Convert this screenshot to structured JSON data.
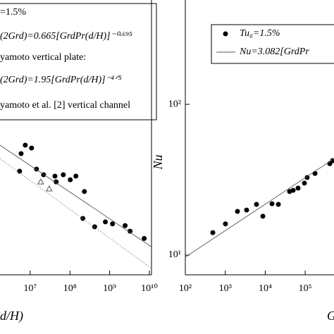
{
  "chart_data": [
    {
      "type": "scatter",
      "xlabel": "d/H)",
      "log_x": true,
      "log_y": true,
      "xlim": [
        1000000,
        10000000000
      ],
      "ylim": [
        7.4,
        492
      ],
      "xticks": [
        {
          "value": 10000000,
          "label": "10⁷"
        },
        {
          "value": 100000000,
          "label": "10⁸"
        },
        {
          "value": 1000000000,
          "label": "10⁹"
        },
        {
          "value": 10000000000,
          "label": "10¹⁰"
        }
      ],
      "yticks": [],
      "legend_note": "yamoto vertical plate:",
      "series": [
        {
          "name": "=1.5%",
          "style": "dot",
          "color": "#000000",
          "x": [
            7500000,
            10800000,
            5900000,
            5400000,
            14400000,
            21700000,
            42000000,
            68000000,
            102000000,
            141000000,
            231000000,
            45000000,
            212000000,
            420000000,
            780000000,
            1180000000,
            2450000000,
            3260000000,
            7400000000
          ],
          "values": [
            53.6,
            51.3,
            47.1,
            36.0,
            37.2,
            34.1,
            33.4,
            34.1,
            31.6,
            33.4,
            26.4,
            30.6,
            17.5,
            15.4,
            16.6,
            16.1,
            15.7,
            14.4,
            12.9
          ]
        },
        {
          "name": "(2Grd)=0.665[GrdPr(d/H)]⁻⁰·⁶⁹⁵",
          "style": "line",
          "color": "#555555",
          "x": [
            1730000,
            11000000000
          ],
          "values": [
            53.6,
            11.4
          ]
        },
        {
          "name": "(2Grd)=1.95[GrdPr(d/H)]⁻⁴ᐟ⁵",
          "style": "dotted",
          "color": "#888888",
          "x": [
            1730000,
            11000000000
          ],
          "values": [
            43.6,
            8.2
          ]
        },
        {
          "name": "yamoto et al. [2] vertical channel",
          "style": "triangle",
          "color": "#555555",
          "x": [
            18400000,
            30000000
          ],
          "values": [
            30.6,
            27.5
          ]
        }
      ]
    },
    {
      "type": "scatter",
      "xlabel": "G",
      "ylabel": "Nu",
      "log_x": true,
      "log_y": true,
      "xlim": [
        100,
        1000000
      ],
      "ylim": [
        7.4,
        492
      ],
      "xticks": [
        {
          "value": 100,
          "label": "10²"
        },
        {
          "value": 1000,
          "label": "10³"
        },
        {
          "value": 10000,
          "label": "10⁴"
        },
        {
          "value": 100000,
          "label": "10⁵"
        }
      ],
      "yticks": [
        {
          "value": 10,
          "label": "10¹"
        },
        {
          "value": 100,
          "label": "10²"
        }
      ],
      "series": [
        {
          "name": "Tu₀=1.5%",
          "style": "dot",
          "color": "#000000",
          "x": [
            488,
            1010,
            2020,
            3420,
            6040,
            8710,
            14800,
            21300,
            40700,
            49900,
            66300,
            95700,
            112000,
            176000,
            413000,
            485000
          ],
          "values": [
            14.1,
            16.1,
            19.5,
            19.9,
            21.7,
            18.1,
            21.9,
            21.7,
            26.4,
            26.9,
            27.8,
            30.0,
            32.7,
            34.8,
            40.4,
            42.3
          ]
        },
        {
          "name": "Nu=3.082[GrdPr",
          "style": "line",
          "color": "#555555",
          "x": [
            100,
            526000
          ],
          "values": [
            9.7,
            43.6
          ]
        }
      ]
    }
  ]
}
